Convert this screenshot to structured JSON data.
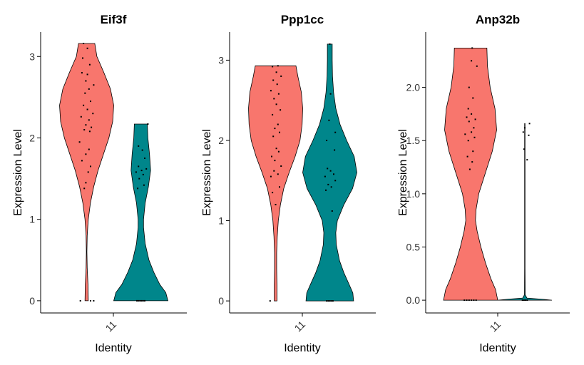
{
  "chart_data": [
    {
      "type": "violin",
      "title": "Eif3f",
      "xlabel": "Identity",
      "ylabel": "Expression Level",
      "categories": [
        "11"
      ],
      "yticks": [
        "0",
        "1",
        "2",
        "3"
      ],
      "ylim": [
        -0.15,
        3.3
      ],
      "colors": [
        "#F8766D",
        "#00868B"
      ],
      "violins": [
        {
          "color": "#F8766D",
          "max": 3.16,
          "profile": [
            [
              0,
              0.06
            ],
            [
              0.2,
              0.05
            ],
            [
              0.4,
              0.02
            ],
            [
              0.6,
              0.01
            ],
            [
              0.8,
              0.02
            ],
            [
              1.0,
              0.06
            ],
            [
              1.2,
              0.14
            ],
            [
              1.4,
              0.26
            ],
            [
              1.6,
              0.42
            ],
            [
              1.8,
              0.62
            ],
            [
              2.0,
              0.82
            ],
            [
              2.2,
              0.96
            ],
            [
              2.4,
              1.0
            ],
            [
              2.6,
              0.88
            ],
            [
              2.8,
              0.64
            ],
            [
              3.0,
              0.38
            ],
            [
              3.16,
              0.3
            ]
          ],
          "points": [
            [
              0.0,
              -0.8
            ],
            [
              0.0,
              0.5
            ],
            [
              0.0,
              0.9
            ],
            [
              1.38,
              -0.3
            ],
            [
              1.45,
              -0.1
            ],
            [
              1.58,
              0.2
            ],
            [
              1.65,
              0.5
            ],
            [
              1.72,
              -0.6
            ],
            [
              1.8,
              -0.1
            ],
            [
              1.86,
              0.3
            ],
            [
              1.95,
              -0.9
            ],
            [
              2.08,
              0.4
            ],
            [
              2.1,
              -0.3
            ],
            [
              2.13,
              0.6
            ],
            [
              2.16,
              -0.1
            ],
            [
              2.22,
              0.3
            ],
            [
              2.26,
              -0.7
            ],
            [
              2.3,
              0.8
            ],
            [
              2.35,
              0.1
            ],
            [
              2.4,
              -0.4
            ],
            [
              2.45,
              0.5
            ],
            [
              2.55,
              -0.2
            ],
            [
              2.6,
              0.3
            ],
            [
              2.65,
              0.9
            ],
            [
              2.7,
              -0.1
            ],
            [
              2.78,
              0.1
            ],
            [
              2.8,
              -0.6
            ],
            [
              2.9,
              0.4
            ],
            [
              2.98,
              -0.5
            ],
            [
              3.1,
              0.1
            ],
            [
              3.16,
              -0.4
            ]
          ]
        },
        {
          "color": "#00868B",
          "max": 2.17,
          "profile": [
            [
              0,
              1.0
            ],
            [
              0.1,
              0.92
            ],
            [
              0.2,
              0.7
            ],
            [
              0.35,
              0.48
            ],
            [
              0.5,
              0.3
            ],
            [
              0.7,
              0.16
            ],
            [
              0.9,
              0.1
            ],
            [
              1.0,
              0.1
            ],
            [
              1.2,
              0.16
            ],
            [
              1.4,
              0.28
            ],
            [
              1.6,
              0.36
            ],
            [
              1.8,
              0.32
            ],
            [
              2.0,
              0.26
            ],
            [
              2.17,
              0.24
            ]
          ],
          "points": [
            [
              0.0,
              -0.5
            ],
            [
              0.0,
              -0.3
            ],
            [
              0.0,
              -0.1
            ],
            [
              0.0,
              0.1
            ],
            [
              0.0,
              0.3
            ],
            [
              0.0,
              0.5
            ],
            [
              1.38,
              -0.4
            ],
            [
              1.42,
              0.4
            ],
            [
              1.5,
              -0.2
            ],
            [
              1.55,
              0.3
            ],
            [
              1.58,
              -0.6
            ],
            [
              1.6,
              0.1
            ],
            [
              1.62,
              0.7
            ],
            [
              1.65,
              -0.3
            ],
            [
              1.75,
              0.5
            ],
            [
              1.85,
              0.2
            ],
            [
              1.9,
              -0.3
            ],
            [
              2.17,
              0.9
            ]
          ]
        }
      ]
    },
    {
      "type": "violin",
      "title": "Ppp1cc",
      "xlabel": "Identity",
      "ylabel": "Expression Level",
      "categories": [
        "11"
      ],
      "yticks": [
        "0",
        "1",
        "2",
        "3"
      ],
      "ylim": [
        -0.15,
        3.35
      ],
      "colors": [
        "#F8766D",
        "#00868B"
      ],
      "violins": [
        {
          "color": "#F8766D",
          "max": 2.93,
          "profile": [
            [
              0,
              0.05
            ],
            [
              0.2,
              0.05
            ],
            [
              0.4,
              0.04
            ],
            [
              0.6,
              0.04
            ],
            [
              0.8,
              0.06
            ],
            [
              1.0,
              0.1
            ],
            [
              1.2,
              0.18
            ],
            [
              1.4,
              0.3
            ],
            [
              1.6,
              0.5
            ],
            [
              1.8,
              0.72
            ],
            [
              2.0,
              0.9
            ],
            [
              2.2,
              0.98
            ],
            [
              2.4,
              1.0
            ],
            [
              2.6,
              0.95
            ],
            [
              2.8,
              0.82
            ],
            [
              2.93,
              0.75
            ]
          ],
          "points": [
            [
              0.0,
              -0.7
            ],
            [
              1.2,
              0.0
            ],
            [
              1.35,
              -0.4
            ],
            [
              1.42,
              0.5
            ],
            [
              1.55,
              -0.6
            ],
            [
              1.58,
              0.3
            ],
            [
              1.62,
              -0.2
            ],
            [
              1.68,
              0.7
            ],
            [
              1.75,
              -0.1
            ],
            [
              1.8,
              -0.5
            ],
            [
              1.86,
              0.4
            ],
            [
              1.9,
              0.1
            ],
            [
              2.05,
              -0.3
            ],
            [
              2.1,
              0.5
            ],
            [
              2.15,
              -0.1
            ],
            [
              2.2,
              0.3
            ],
            [
              2.32,
              -0.4
            ],
            [
              2.38,
              0.6
            ],
            [
              2.45,
              0.1
            ],
            [
              2.52,
              -0.2
            ],
            [
              2.58,
              0.4
            ],
            [
              2.62,
              -0.6
            ],
            [
              2.7,
              0.2
            ],
            [
              2.75,
              -0.3
            ],
            [
              2.8,
              0.7
            ],
            [
              2.85,
              0.1
            ],
            [
              2.92,
              -0.4
            ],
            [
              2.93,
              0.3
            ]
          ]
        },
        {
          "color": "#00868B",
          "max": 3.2,
          "profile": [
            [
              0,
              0.88
            ],
            [
              0.1,
              0.85
            ],
            [
              0.2,
              0.72
            ],
            [
              0.35,
              0.52
            ],
            [
              0.5,
              0.36
            ],
            [
              0.7,
              0.24
            ],
            [
              0.85,
              0.22
            ],
            [
              1.0,
              0.28
            ],
            [
              1.2,
              0.52
            ],
            [
              1.4,
              0.84
            ],
            [
              1.6,
              1.0
            ],
            [
              1.8,
              0.9
            ],
            [
              2.0,
              0.62
            ],
            [
              2.2,
              0.38
            ],
            [
              2.4,
              0.22
            ],
            [
              2.6,
              0.14
            ],
            [
              2.8,
              0.1
            ],
            [
              3.0,
              0.09
            ],
            [
              3.2,
              0.09
            ]
          ],
          "points": [
            [
              0.0,
              -0.4
            ],
            [
              0.0,
              -0.2
            ],
            [
              0.0,
              0.0
            ],
            [
              0.0,
              0.2
            ],
            [
              0.0,
              0.4
            ],
            [
              1.12,
              0.3
            ],
            [
              1.38,
              -0.5
            ],
            [
              1.42,
              0.2
            ],
            [
              1.45,
              -0.2
            ],
            [
              1.5,
              0.7
            ],
            [
              1.55,
              -0.6
            ],
            [
              1.58,
              0.5
            ],
            [
              1.62,
              0.1
            ],
            [
              1.65,
              -0.3
            ],
            [
              1.88,
              0.6
            ],
            [
              2.0,
              -0.4
            ],
            [
              2.1,
              0.7
            ],
            [
              2.25,
              -0.1
            ],
            [
              2.58,
              0.1
            ],
            [
              3.2,
              0.0
            ]
          ]
        }
      ]
    },
    {
      "type": "violin",
      "title": "Anp32b",
      "xlabel": "Identity",
      "ylabel": "Expression Level",
      "categories": [
        "11"
      ],
      "yticks": [
        "0.0",
        "0.5",
        "1.0",
        "1.5",
        "2.0"
      ],
      "ylim": [
        -0.12,
        2.52
      ],
      "colors": [
        "#F8766D",
        "#00868B"
      ],
      "violins": [
        {
          "color": "#F8766D",
          "max": 2.37,
          "profile": [
            [
              0,
              1.0
            ],
            [
              0.1,
              0.92
            ],
            [
              0.2,
              0.75
            ],
            [
              0.35,
              0.55
            ],
            [
              0.5,
              0.38
            ],
            [
              0.65,
              0.24
            ],
            [
              0.75,
              0.18
            ],
            [
              0.85,
              0.2
            ],
            [
              1.0,
              0.3
            ],
            [
              1.2,
              0.55
            ],
            [
              1.4,
              0.8
            ],
            [
              1.6,
              0.96
            ],
            [
              1.8,
              0.9
            ],
            [
              2.0,
              0.72
            ],
            [
              2.2,
              0.62
            ],
            [
              2.37,
              0.6
            ]
          ],
          "points": [
            [
              0.0,
              -0.8
            ],
            [
              0.0,
              -0.5
            ],
            [
              0.0,
              -0.2
            ],
            [
              0.0,
              0.1
            ],
            [
              0.0,
              0.4
            ],
            [
              0.0,
              0.7
            ],
            [
              1.23,
              -0.1
            ],
            [
              1.3,
              0.2
            ],
            [
              1.35,
              -0.4
            ],
            [
              1.4,
              0.3
            ],
            [
              1.5,
              -0.3
            ],
            [
              1.53,
              0.5
            ],
            [
              1.56,
              -0.7
            ],
            [
              1.58,
              0.1
            ],
            [
              1.62,
              0.4
            ],
            [
              1.68,
              -0.2
            ],
            [
              1.7,
              0.6
            ],
            [
              1.72,
              -0.5
            ],
            [
              1.75,
              0.1
            ],
            [
              1.8,
              -0.3
            ],
            [
              1.9,
              0.3
            ],
            [
              2.0,
              -0.2
            ],
            [
              2.2,
              0.8
            ],
            [
              2.25,
              0.1
            ],
            [
              2.37,
              0.2
            ]
          ]
        },
        {
          "color": "#00868B",
          "max": 1.66,
          "profile": [
            [
              0,
              1.0
            ],
            [
              0.01,
              0.6
            ],
            [
              0.02,
              0.08
            ],
            [
              0.05,
              0.012
            ],
            [
              0.3,
              0.008
            ],
            [
              0.8,
              0.008
            ],
            [
              1.3,
              0.008
            ],
            [
              1.66,
              0.008
            ]
          ],
          "points": [
            [
              0.0,
              -0.3
            ],
            [
              0.0,
              -0.1
            ],
            [
              0.0,
              0.1
            ],
            [
              0.0,
              0.3
            ],
            [
              1.32,
              0.3
            ],
            [
              1.42,
              -0.1
            ],
            [
              1.55,
              0.5
            ],
            [
              1.58,
              -0.2
            ],
            [
              1.62,
              0.0
            ],
            [
              1.66,
              0.6
            ]
          ]
        }
      ]
    }
  ]
}
